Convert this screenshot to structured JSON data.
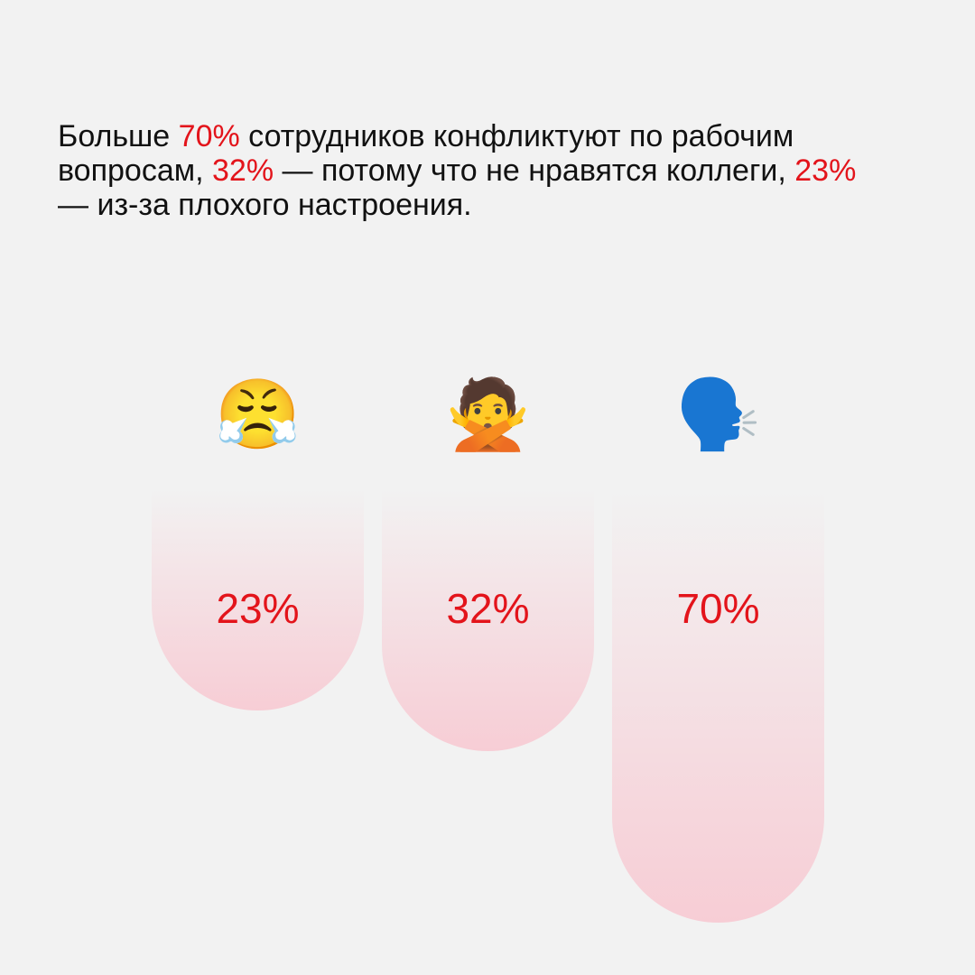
{
  "chart_data": {
    "type": "bar",
    "title_parts": [
      {
        "text": "Больше ",
        "accent": false
      },
      {
        "text": "70%",
        "accent": true
      },
      {
        "text": " сотрудников конфликтуют по рабочим вопросам, ",
        "accent": false
      },
      {
        "text": "32%",
        "accent": true
      },
      {
        "text": " — потому что не нравятся коллеги, ",
        "accent": false
      },
      {
        "text": "23%",
        "accent": true
      },
      {
        "text": " — из-за плохого настроения.",
        "accent": false
      }
    ],
    "categories": [
      "😤",
      "🙅",
      "🗣️"
    ],
    "values": [
      23,
      32,
      70
    ],
    "value_labels": [
      "23%",
      "32%",
      "70%"
    ],
    "accent_color": "#e3141b",
    "color": "#f7cdd5"
  }
}
